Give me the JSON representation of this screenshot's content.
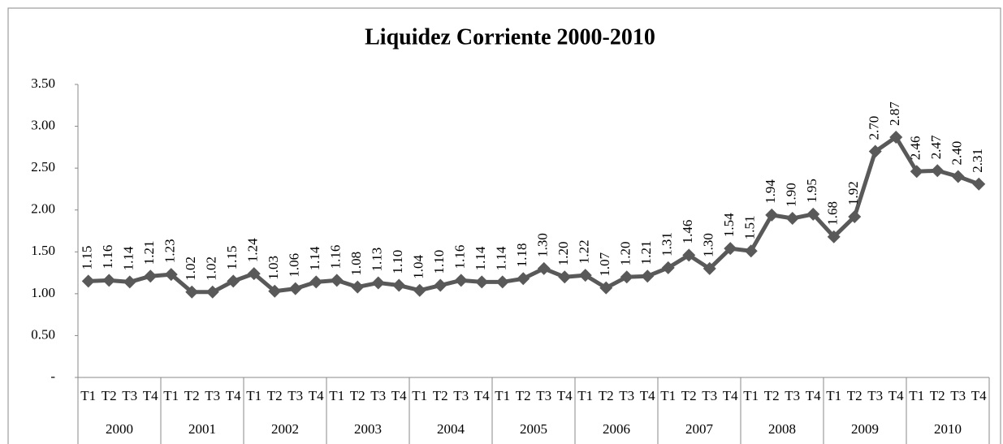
{
  "chart_data": {
    "type": "line",
    "title": "Liquidez Corriente 2000-2010",
    "categories": [
      "T1",
      "T2",
      "T3",
      "T4",
      "T1",
      "T2",
      "T3",
      "T4",
      "T1",
      "T2",
      "T3",
      "T4",
      "T1",
      "T2",
      "T3",
      "T4",
      "T1",
      "T2",
      "T3",
      "T4",
      "T1",
      "T2",
      "T3",
      "T4",
      "T1",
      "T2",
      "T3",
      "T4",
      "T1",
      "T2",
      "T3",
      "T4",
      "T1",
      "T2",
      "T3",
      "T4",
      "T1",
      "T2",
      "T3",
      "T4",
      "T1",
      "T2",
      "T3",
      "T4"
    ],
    "category_groups": [
      "2000",
      "2001",
      "2002",
      "2003",
      "2004",
      "2005",
      "2006",
      "2007",
      "2008",
      "2009",
      "2010"
    ],
    "values": [
      1.15,
      1.16,
      1.14,
      1.21,
      1.23,
      1.02,
      1.02,
      1.15,
      1.24,
      1.03,
      1.06,
      1.14,
      1.16,
      1.08,
      1.13,
      1.1,
      1.04,
      1.1,
      1.16,
      1.14,
      1.14,
      1.18,
      1.3,
      1.2,
      1.22,
      1.07,
      1.2,
      1.21,
      1.31,
      1.46,
      1.3,
      1.54,
      1.51,
      1.94,
      1.9,
      1.95,
      1.68,
      1.92,
      2.7,
      2.87,
      2.46,
      2.47,
      2.4,
      2.31
    ],
    "value_labels": [
      "1.15",
      "1.16",
      "1.14",
      "1.21",
      "1.23",
      "1.02",
      "1.02",
      "1.15",
      "1.24",
      "1.03",
      "1.06",
      "1.14",
      "1.16",
      "1.08",
      "1.13",
      "1.10",
      "1.04",
      "1.10",
      "1.16",
      "1.14",
      "1.14",
      "1.18",
      "1.30",
      "1.20",
      "1.22",
      "1.07",
      "1.20",
      "1.21",
      "1.31",
      "1.46",
      "1.30",
      "1.54",
      "1.51",
      "1.94",
      "1.90",
      "1.95",
      "1.68",
      "1.92",
      "2.70",
      "2.87",
      "2.46",
      "2.47",
      "2.40",
      "2.31"
    ],
    "color": "#595959",
    "ylim": [
      0,
      3.5
    ],
    "yticks": [
      {
        "value": 0,
        "label": "-"
      },
      {
        "value": 0.5,
        "label": "0.50"
      },
      {
        "value": 1,
        "label": "1.00"
      },
      {
        "value": 1.5,
        "label": "1.50"
      },
      {
        "value": 2,
        "label": "2.00"
      },
      {
        "value": 2.5,
        "label": "2.50"
      },
      {
        "value": 3,
        "label": "3.00"
      },
      {
        "value": 3.5,
        "label": "3.50"
      }
    ],
    "grid": false
  }
}
